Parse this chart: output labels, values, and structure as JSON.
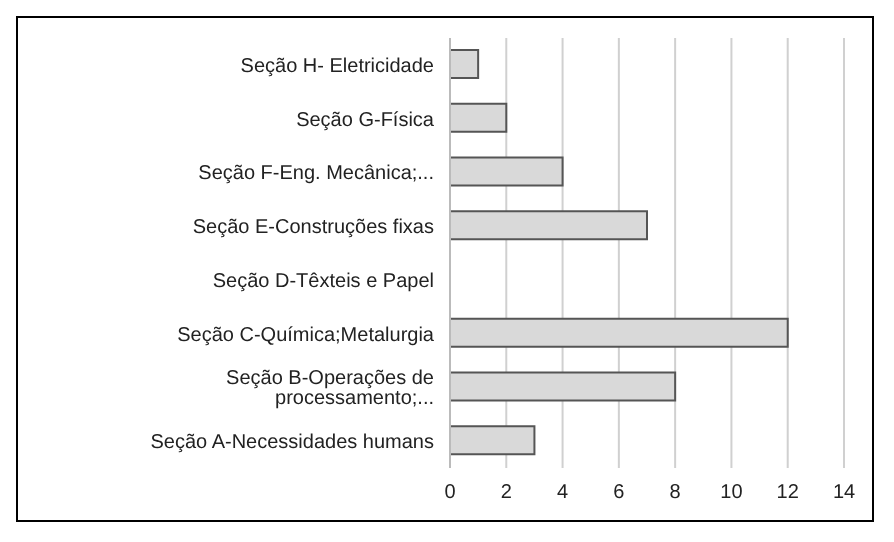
{
  "chart_data": {
    "type": "bar",
    "orientation": "horizontal",
    "categories": [
      "Seção H- Eletricidade",
      "Seção G-Física",
      "Seção F-Eng. Mecânica;...",
      "Seção E-Construções fixas",
      "Seção D-Têxteis e Papel",
      "Seção C-Química;Metalurgia",
      "Seção B-Operações de processamento;...",
      "Seção A-Necessidades humans"
    ],
    "values": [
      1,
      2,
      4,
      7,
      0,
      12,
      8,
      3
    ],
    "color": "#d9d9d9",
    "xlim": [
      0,
      14
    ],
    "xticks": [
      0,
      2,
      4,
      6,
      8,
      10,
      12,
      14
    ],
    "grid": "x"
  }
}
